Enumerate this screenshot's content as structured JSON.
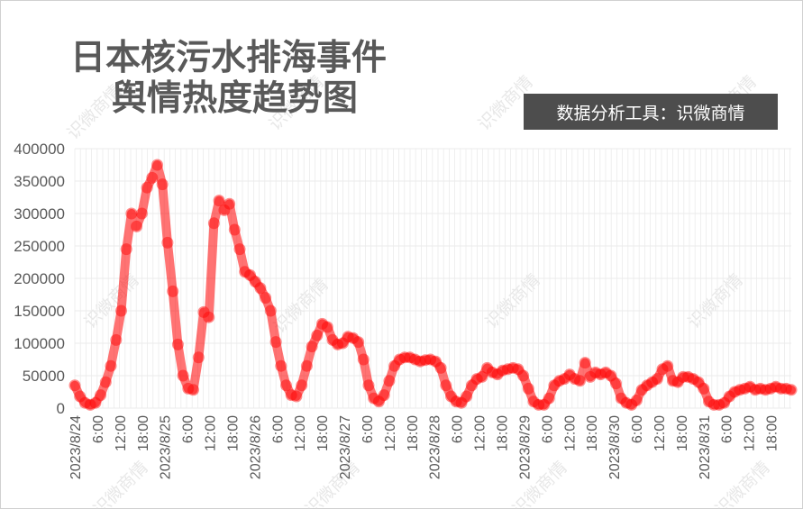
{
  "title": {
    "line1": "日本核污水排海事件",
    "line2": "舆情热度趋势图"
  },
  "source_badge": "数据分析工具：识微商情",
  "watermark_text": "识微商情",
  "colors": {
    "series": "#ff0000",
    "title": "#595959",
    "badge_bg": "#4d4d4d",
    "badge_text": "#ffffff",
    "axis_text": "#595959",
    "grid": "#ebebeb"
  },
  "chart_data": {
    "type": "line",
    "title": "日本核污水排海事件 舆情热度趋势图",
    "xlabel": "",
    "ylabel": "",
    "ylim": [
      0,
      400000
    ],
    "yticks": [
      0,
      50000,
      100000,
      150000,
      200000,
      250000,
      300000,
      350000,
      400000
    ],
    "ytick_labels": [
      "0",
      "50000",
      "100000",
      "150000",
      "200000",
      "250000",
      "300000",
      "350000",
      "400000"
    ],
    "x_start_label": "2023/8/24",
    "x_tick_labels": [
      "2023/8/24",
      "6:00",
      "12:00",
      "18:00",
      "2023/8/25",
      "6:00",
      "12:00",
      "18:00",
      "2023/8/26",
      "6:00",
      "12:00",
      "18:00",
      "2023/8/27",
      "6:00",
      "12:00",
      "18:00",
      "2023/8/28",
      "6:00",
      "12:00",
      "18:00",
      "2023/8/29",
      "6:00",
      "12:00",
      "18:00",
      "2023/8/30",
      "6:00",
      "12:00",
      "18:00",
      "2023/8/31",
      "6:00",
      "12:00",
      "18:00"
    ],
    "grid": true,
    "legend": "none",
    "series": [
      {
        "values": [
          35000,
          18000,
          8000,
          5000,
          8000,
          20000,
          40000,
          65000,
          105000,
          150000,
          245000,
          300000,
          280000,
          300000,
          340000,
          355000,
          375000,
          345000,
          255000,
          180000,
          98000,
          50000,
          30000,
          28000,
          78000,
          148000,
          140000,
          285000,
          320000,
          305000,
          315000,
          275000,
          245000,
          210000,
          205000,
          195000,
          185000,
          170000,
          150000,
          102000,
          65000,
          35000,
          20000,
          18000,
          35000,
          65000,
          95000,
          112000,
          130000,
          125000,
          105000,
          98000,
          100000,
          110000,
          108000,
          102000,
          75000,
          35000,
          15000,
          10000,
          20000,
          42000,
          65000,
          75000,
          78000,
          78000,
          75000,
          72000,
          74000,
          75000,
          72000,
          62000,
          35000,
          18000,
          10000,
          8000,
          18000,
          35000,
          45000,
          48000,
          62000,
          55000,
          52000,
          58000,
          60000,
          62000,
          60000,
          50000,
          30000,
          10000,
          5000,
          5000,
          15000,
          35000,
          42000,
          45000,
          52000,
          45000,
          42000,
          70000,
          48000,
          55000,
          52000,
          55000,
          50000,
          38000,
          15000,
          8000,
          5000,
          12000,
          28000,
          35000,
          40000,
          45000,
          60000,
          65000,
          42000,
          40000,
          48000,
          48000,
          45000,
          40000,
          30000,
          10000,
          5000,
          5000,
          8000,
          18000,
          25000,
          28000,
          30000,
          33000,
          28000,
          30000,
          28000,
          30000,
          33000,
          30000,
          30000,
          28000
        ]
      }
    ]
  }
}
